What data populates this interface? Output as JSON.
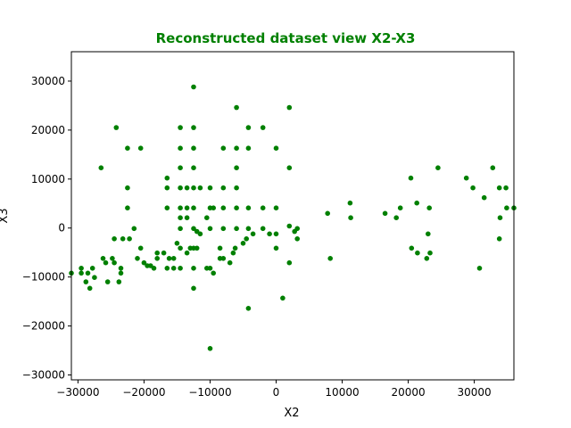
{
  "chart_data": {
    "type": "scatter",
    "title": "Reconstructed dataset view X2-X3",
    "xlabel": "X2",
    "ylabel": "X3",
    "xlim": [
      -31000,
      36000
    ],
    "ylim": [
      -31000,
      36000
    ],
    "xticks": [
      -30000,
      -20000,
      -10000,
      0,
      10000,
      20000,
      30000
    ],
    "yticks": [
      -30000,
      -20000,
      -10000,
      0,
      10000,
      20000,
      30000
    ],
    "grid": false,
    "color": "#008000",
    "series": [
      {
        "points": [
          [
            -31000,
            -9200
          ],
          [
            -29500,
            -8200
          ],
          [
            -29500,
            -9200
          ],
          [
            -28800,
            -11000
          ],
          [
            -28500,
            -9200
          ],
          [
            -28200,
            -12300
          ],
          [
            -27800,
            -8200
          ],
          [
            -27500,
            -10100
          ],
          [
            -26500,
            12300
          ],
          [
            -26200,
            -6200
          ],
          [
            -25800,
            -7100
          ],
          [
            -25500,
            -11000
          ],
          [
            -24800,
            -6200
          ],
          [
            -24500,
            -2200
          ],
          [
            -24500,
            -7100
          ],
          [
            -24200,
            20500
          ],
          [
            -23800,
            -11000
          ],
          [
            -23500,
            -8200
          ],
          [
            -23500,
            -9200
          ],
          [
            -23200,
            -2200
          ],
          [
            -22500,
            16300
          ],
          [
            -22500,
            8200
          ],
          [
            -22500,
            4100
          ],
          [
            -22200,
            -2200
          ],
          [
            -21500,
            -100
          ],
          [
            -21000,
            -6200
          ],
          [
            -20500,
            -4100
          ],
          [
            -20500,
            16300
          ],
          [
            -20000,
            -7100
          ],
          [
            -19500,
            -7700
          ],
          [
            -19000,
            -7700
          ],
          [
            -18500,
            -8200
          ],
          [
            -18000,
            -5100
          ],
          [
            -18000,
            -6200
          ],
          [
            -17000,
            -5100
          ],
          [
            -16500,
            10200
          ],
          [
            -16500,
            8200
          ],
          [
            -16500,
            4100
          ],
          [
            -16500,
            -8200
          ],
          [
            -16200,
            -6200
          ],
          [
            -15500,
            -6200
          ],
          [
            -15500,
            -8200
          ],
          [
            -15000,
            -3100
          ],
          [
            -14500,
            20500
          ],
          [
            -14500,
            16300
          ],
          [
            -14500,
            12300
          ],
          [
            -14500,
            8200
          ],
          [
            -14500,
            4100
          ],
          [
            -14500,
            2100
          ],
          [
            -14500,
            -100
          ],
          [
            -14500,
            -4100
          ],
          [
            -14500,
            -8200
          ],
          [
            -13500,
            8200
          ],
          [
            -13500,
            4100
          ],
          [
            -13500,
            2100
          ],
          [
            -13500,
            -5100
          ],
          [
            -13000,
            -4100
          ],
          [
            -12500,
            28800
          ],
          [
            -12500,
            20500
          ],
          [
            -12500,
            16300
          ],
          [
            -12500,
            12300
          ],
          [
            -12500,
            8200
          ],
          [
            -12500,
            4100
          ],
          [
            -12500,
            -100
          ],
          [
            -12500,
            -4100
          ],
          [
            -12500,
            -8200
          ],
          [
            -12500,
            -12300
          ],
          [
            -12000,
            -700
          ],
          [
            -12000,
            -4100
          ],
          [
            -11500,
            -1200
          ],
          [
            -11500,
            8200
          ],
          [
            -10500,
            2100
          ],
          [
            -10500,
            -8200
          ],
          [
            -10000,
            8200
          ],
          [
            -10000,
            4100
          ],
          [
            -10000,
            -100
          ],
          [
            -10000,
            -8200
          ],
          [
            -10000,
            -24600
          ],
          [
            -9500,
            -9200
          ],
          [
            -9500,
            4100
          ],
          [
            -8500,
            -4100
          ],
          [
            -8500,
            -6200
          ],
          [
            -8000,
            16300
          ],
          [
            -8000,
            8200
          ],
          [
            -8000,
            4100
          ],
          [
            -8000,
            -100
          ],
          [
            -8000,
            -6200
          ],
          [
            -7000,
            -7100
          ],
          [
            -6500,
            -5100
          ],
          [
            -6200,
            -4100
          ],
          [
            -6000,
            24600
          ],
          [
            -6000,
            16300
          ],
          [
            -6000,
            12300
          ],
          [
            -6000,
            8200
          ],
          [
            -6000,
            4100
          ],
          [
            -6000,
            -100
          ],
          [
            -5000,
            -3100
          ],
          [
            -4500,
            -2200
          ],
          [
            -4200,
            20500
          ],
          [
            -4200,
            16300
          ],
          [
            -4200,
            4100
          ],
          [
            -4200,
            -100
          ],
          [
            -4200,
            -16400
          ],
          [
            -3500,
            -1200
          ],
          [
            -2000,
            20500
          ],
          [
            -2000,
            4100
          ],
          [
            -2000,
            -100
          ],
          [
            -1000,
            -1200
          ],
          [
            0,
            16300
          ],
          [
            0,
            4100
          ],
          [
            0,
            -4100
          ],
          [
            0,
            -1200
          ],
          [
            1000,
            -14300
          ],
          [
            2000,
            24600
          ],
          [
            2000,
            12300
          ],
          [
            2000,
            400
          ],
          [
            2000,
            -7100
          ],
          [
            2800,
            -700
          ],
          [
            3200,
            -100
          ],
          [
            3200,
            -2200
          ],
          [
            7800,
            3000
          ],
          [
            8200,
            -6200
          ],
          [
            11200,
            5100
          ],
          [
            11300,
            2100
          ],
          [
            16500,
            3000
          ],
          [
            18200,
            2100
          ],
          [
            18800,
            4100
          ],
          [
            20400,
            10200
          ],
          [
            20500,
            -4100
          ],
          [
            21300,
            5100
          ],
          [
            21400,
            -5100
          ],
          [
            22800,
            -6200
          ],
          [
            23000,
            -1200
          ],
          [
            23200,
            4100
          ],
          [
            23300,
            -5100
          ],
          [
            24500,
            12300
          ],
          [
            28800,
            10200
          ],
          [
            29800,
            8200
          ],
          [
            30800,
            -8200
          ],
          [
            31500,
            6200
          ],
          [
            32800,
            12300
          ],
          [
            33800,
            8200
          ],
          [
            33800,
            -2200
          ],
          [
            33900,
            2100
          ],
          [
            34800,
            8200
          ],
          [
            34900,
            4100
          ],
          [
            36000,
            4100
          ]
        ]
      }
    ]
  }
}
